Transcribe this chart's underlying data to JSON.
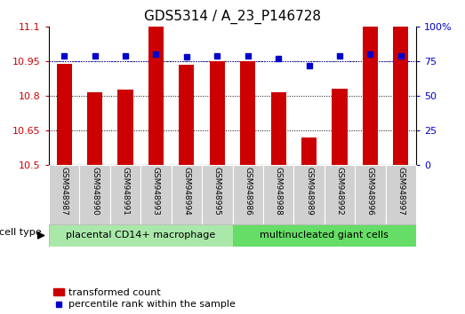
{
  "title": "GDS5314 / A_23_P146728",
  "samples": [
    "GSM948987",
    "GSM948990",
    "GSM948991",
    "GSM948993",
    "GSM948994",
    "GSM948995",
    "GSM948986",
    "GSM948988",
    "GSM948989",
    "GSM948992",
    "GSM948996",
    "GSM948997"
  ],
  "transformed_counts": [
    10.94,
    10.815,
    10.825,
    11.1,
    10.935,
    10.95,
    10.95,
    10.815,
    10.62,
    10.83,
    11.1,
    11.1
  ],
  "percentile_ranks": [
    79,
    79,
    79,
    80,
    78,
    79,
    79,
    77,
    72,
    79,
    80,
    79
  ],
  "group1_label": "placental CD14+ macrophage",
  "group2_label": "multinucleated giant cells",
  "group1_count": 6,
  "group2_count": 6,
  "ylim_left": [
    10.5,
    11.1
  ],
  "ylim_right": [
    0,
    100
  ],
  "yticks_left": [
    10.5,
    10.65,
    10.8,
    10.95,
    11.1
  ],
  "yticks_right": [
    0,
    25,
    50,
    75,
    100
  ],
  "bar_color": "#cc0000",
  "dot_color": "#0000cc",
  "group1_bg": "#aae8aa",
  "group2_bg": "#66dd66",
  "sample_bg": "#d0d0d0",
  "bar_width": 0.5,
  "bar_bottom": 10.5,
  "legend_dot_label": "percentile rank within the sample",
  "legend_bar_label": "transformed count",
  "cell_type_label": "cell type",
  "pct_dotted_line": 75
}
